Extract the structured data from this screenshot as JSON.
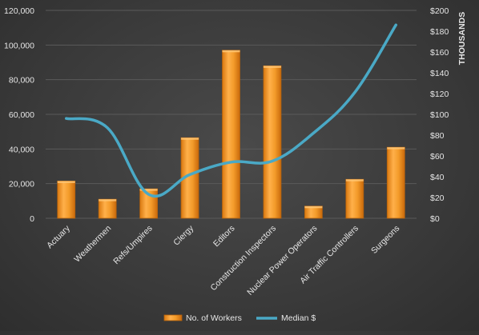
{
  "chart_data": {
    "type": "bar",
    "categories": [
      "Actuary",
      "Weathermen",
      "Refs/Umpires",
      "Clergy",
      "Editors",
      "Construction Inspectors",
      "Nuclear Power Operators",
      "Air Traffic Controllers",
      "Surgeons"
    ],
    "series": [
      {
        "name": "No. of Workers",
        "type": "bar",
        "axis": "left",
        "color": "#f39b2a",
        "values": [
          21500,
          11000,
          17000,
          46500,
          97000,
          88000,
          7000,
          22500,
          41000
        ]
      },
      {
        "name": "Median $",
        "type": "line",
        "axis": "right",
        "color": "#4aa9c6",
        "values": [
          96,
          87,
          23,
          42,
          54,
          55,
          82,
          121,
          186
        ]
      }
    ],
    "y_left": {
      "ylim": [
        0,
        120000
      ],
      "ticks": [
        0,
        20000,
        40000,
        60000,
        80000,
        100000,
        120000
      ],
      "tick_labels": [
        "0",
        "20,000",
        "40,000",
        "60,000",
        "80,000",
        "100,000",
        "120,000"
      ]
    },
    "y_right": {
      "ylim": [
        0,
        200
      ],
      "ticks": [
        0,
        20,
        40,
        60,
        80,
        100,
        120,
        140,
        160,
        180,
        200
      ],
      "tick_labels": [
        "$0",
        "$20",
        "$40",
        "$60",
        "$80",
        "$100",
        "$120",
        "$140",
        "$160",
        "$180",
        "$200"
      ],
      "label": "THOUSANDS"
    },
    "legend": {
      "position": "bottom",
      "entries": [
        "No. of Workers",
        "Median $"
      ]
    },
    "grid": true,
    "colors": {
      "bar_fill": "#f39b2a",
      "bar_edge": "#b3620e",
      "line": "#4aa9c6",
      "grid": "#5a5a5a",
      "text": "#e6e6e6"
    }
  }
}
